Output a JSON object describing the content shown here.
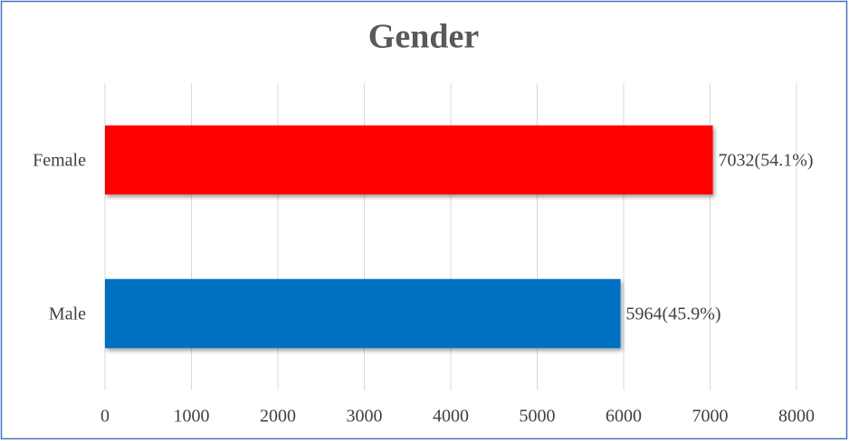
{
  "chart_data": {
    "type": "hbar",
    "title": "Gender",
    "categories": [
      "Female",
      "Male"
    ],
    "values": [
      7032,
      5964
    ],
    "value_labels": [
      "7032(54.1%)",
      "5964(45.9%)"
    ],
    "colors": [
      "#ff0000",
      "#0070c0"
    ],
    "xlim": [
      0,
      8000
    ],
    "xticks": [
      0,
      1000,
      2000,
      3000,
      4000,
      5000,
      6000,
      7000,
      8000
    ],
    "grid": true
  }
}
